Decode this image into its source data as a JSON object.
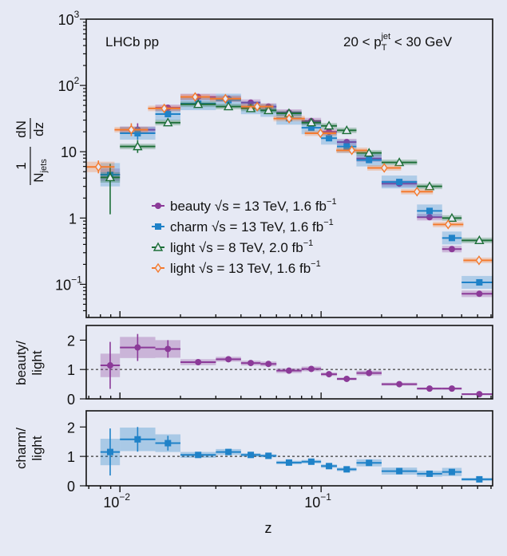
{
  "chart_data": [
    {
      "type": "scatter",
      "panel": "main",
      "title": "",
      "annotations": {
        "experiment": "LHCb pp",
        "selection": "20 < p",
        "selection_sub": "T",
        "selection_sup": "jet",
        "selection_end": " < 30 GeV"
      },
      "ylabel": {
        "num": "1",
        "den": "N",
        "den_sub": "jets",
        "frac_num": "dN",
        "frac_den": "dz"
      },
      "xlabel": "z",
      "xscale": "log",
      "yscale": "log",
      "xlim": [
        0.0068,
        0.713
      ],
      "ylim": [
        0.0316,
        1000
      ],
      "yticks": [
        {
          "base": "10",
          "exp": "3",
          "v": 1000
        },
        {
          "base": "10",
          "exp": "2",
          "v": 100
        },
        {
          "base": "10",
          "exp": "",
          "v": 10
        },
        {
          "base": "1",
          "exp": "",
          "v": 1
        },
        {
          "base": "10",
          "exp": "−1",
          "v": 0.1
        }
      ],
      "xticks": [
        {
          "base": "10",
          "exp": "−2",
          "v": 0.01
        },
        {
          "base": "10",
          "exp": "−1",
          "v": 0.1
        }
      ],
      "legend_placement": "center-left",
      "bins": [
        0.008,
        0.01,
        0.015,
        0.02,
        0.03,
        0.04,
        0.05,
        0.06,
        0.08,
        0.1,
        0.12,
        0.15,
        0.2,
        0.3,
        0.4,
        0.5,
        0.75
      ],
      "bins_light13": [
        0.0065,
        0.0094,
        0.0138,
        0.02,
        0.028,
        0.04,
        0.058,
        0.083,
        0.119,
        0.17,
        0.25,
        0.36,
        0.51,
        0.73
      ],
      "series": [
        {
          "name": "beauty √s = 13 TeV, 1.6 fb",
          "sup": "−1",
          "color": "#8b3a98",
          "marker": "circle",
          "bins": "bins",
          "values": [
            4.5,
            21.5,
            46,
            67,
            63,
            55,
            48,
            39,
            29,
            20,
            14,
            7.9,
            3.3,
            1.03,
            0.34,
            0.072
          ],
          "rel_unc": 0.12
        },
        {
          "name": "charm √s = 13 TeV, 1.6 fb",
          "sup": "−1",
          "color": "#1f82c8",
          "marker": "square",
          "bins": "bins",
          "values": [
            4.5,
            19,
            37,
            53,
            60,
            46,
            42,
            32,
            23,
            16,
            12,
            7.5,
            3.5,
            1.28,
            0.5,
            0.107
          ],
          "rel_unc": 0.25
        },
        {
          "name": "light √s = 8 TeV, 2.0 fb",
          "sup": "−1",
          "color": "#1d6f38",
          "marker": "triangle-open",
          "bins": "bins",
          "values": [
            4.1,
            12,
            27.5,
            52,
            48,
            45,
            42,
            38,
            27.5,
            24.6,
            21,
            9.6,
            6.9,
            3.0,
            1.0,
            0.46
          ],
          "rel_unc": 0.1
        },
        {
          "name": "light √s = 13 TeV, 1.6 fb",
          "sup": "−1",
          "color": "#f47a2e",
          "marker": "diamond-open",
          "bins": "bins_light13",
          "values": [
            5.9,
            21.5,
            45,
            67,
            63,
            48,
            31.6,
            19,
            10.5,
            5.7,
            2.5,
            0.8,
            0.23
          ],
          "rel_unc": 0.1
        }
      ]
    },
    {
      "type": "scatter",
      "panel": "beauty-ratio",
      "ylabel": [
        "beauty/",
        "light"
      ],
      "ylim": [
        0,
        2.5
      ],
      "yticks": [
        "0",
        "1",
        "2"
      ],
      "reference_line": 1,
      "color": "#8b3a98",
      "values": [
        1.14,
        1.75,
        1.7,
        1.25,
        1.35,
        1.22,
        1.19,
        0.96,
        1.02,
        0.84,
        0.68,
        0.88,
        0.5,
        0.35,
        0.35,
        0.16
      ],
      "syst": [
        0.4,
        0.36,
        0.3,
        0.1,
        0.08,
        0.08,
        0.08,
        0.08,
        0.08,
        0.06,
        0.05,
        0.08,
        0.05,
        0.04,
        0.04,
        0.03
      ],
      "stat": [
        0.8,
        0.46,
        0.3,
        0,
        0.06,
        0,
        0,
        0,
        0,
        0,
        0,
        0,
        0,
        0,
        0,
        0
      ]
    },
    {
      "type": "scatter",
      "panel": "charm-ratio",
      "ylabel": [
        "charm/",
        "light"
      ],
      "xlabel": "z",
      "ylim": [
        0,
        2.55
      ],
      "yticks": [
        "0",
        "1",
        "2"
      ],
      "reference_line": 1,
      "color": "#1f82c8",
      "values": [
        1.15,
        1.58,
        1.45,
        1.05,
        1.15,
        1.05,
        1.02,
        0.79,
        0.82,
        0.67,
        0.56,
        0.78,
        0.5,
        0.41,
        0.47,
        0.22
      ],
      "syst": [
        0.45,
        0.4,
        0.3,
        0.1,
        0.1,
        0.06,
        0.05,
        0.06,
        0.06,
        0.06,
        0.06,
        0.12,
        0.12,
        0.1,
        0.14,
        0.05
      ],
      "stat": [
        0.8,
        0.42,
        0.25,
        0,
        0,
        0,
        0,
        0,
        0,
        0,
        0,
        0,
        0,
        0,
        0.1,
        0
      ]
    }
  ]
}
